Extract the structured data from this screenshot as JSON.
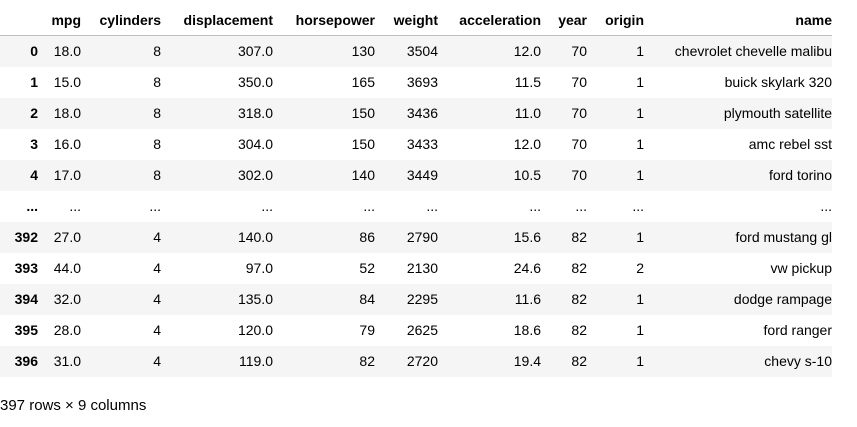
{
  "table": {
    "columns": [
      "",
      "mpg",
      "cylinders",
      "displacement",
      "horsepower",
      "weight",
      "acceleration",
      "year",
      "origin",
      "name"
    ],
    "rows": [
      [
        "0",
        "18.0",
        "8",
        "307.0",
        "130",
        "3504",
        "12.0",
        "70",
        "1",
        "chevrolet chevelle malibu"
      ],
      [
        "1",
        "15.0",
        "8",
        "350.0",
        "165",
        "3693",
        "11.5",
        "70",
        "1",
        "buick skylark 320"
      ],
      [
        "2",
        "18.0",
        "8",
        "318.0",
        "150",
        "3436",
        "11.0",
        "70",
        "1",
        "plymouth satellite"
      ],
      [
        "3",
        "16.0",
        "8",
        "304.0",
        "150",
        "3433",
        "12.0",
        "70",
        "1",
        "amc rebel sst"
      ],
      [
        "4",
        "17.0",
        "8",
        "302.0",
        "140",
        "3449",
        "10.5",
        "70",
        "1",
        "ford torino"
      ],
      [
        "...",
        "...",
        "...",
        "...",
        "...",
        "...",
        "...",
        "...",
        "...",
        "..."
      ],
      [
        "392",
        "27.0",
        "4",
        "140.0",
        "86",
        "2790",
        "15.6",
        "82",
        "1",
        "ford mustang gl"
      ],
      [
        "393",
        "44.0",
        "4",
        "97.0",
        "52",
        "2130",
        "24.6",
        "82",
        "2",
        "vw pickup"
      ],
      [
        "394",
        "32.0",
        "4",
        "135.0",
        "84",
        "2295",
        "11.6",
        "82",
        "1",
        "dodge rampage"
      ],
      [
        "395",
        "28.0",
        "4",
        "120.0",
        "79",
        "2625",
        "18.6",
        "82",
        "1",
        "ford ranger"
      ],
      [
        "396",
        "31.0",
        "4",
        "119.0",
        "82",
        "2720",
        "19.4",
        "82",
        "1",
        "chevy s-10"
      ]
    ]
  },
  "caption": "397 rows × 9 columns",
  "colors": {
    "stripe": "#f5f5f5",
    "header_rule": "#bdbdbd",
    "text": "#000000"
  }
}
